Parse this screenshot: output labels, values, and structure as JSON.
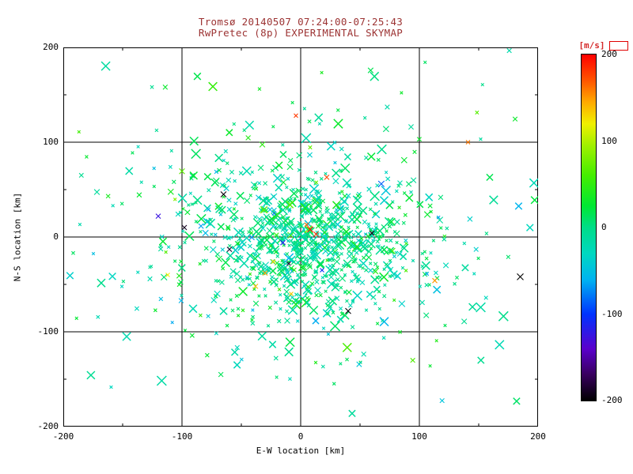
{
  "figure": {
    "background": "#ffffff",
    "title_color": "#9c3333",
    "axis_color": "#000000",
    "unit_label_color": "#d42a2a",
    "legend_box_color": "#e00000"
  },
  "chart_data": {
    "type": "scatter",
    "title": "Tromsø 20140507 07:24:00-07:25:43",
    "subtitle": "RwPretec (8p) EXPERIMENTAL SKYMAP",
    "xlabel": "E-W location [km]",
    "ylabel": "N-S location [km]",
    "xlim": [
      -200,
      200
    ],
    "ylim": [
      -200,
      200
    ],
    "xticks": [
      -200,
      -100,
      0,
      100,
      200
    ],
    "yticks": [
      -200,
      -100,
      0,
      100,
      200
    ],
    "minor_tick_step": 50,
    "grid": true,
    "gridlines_x": [
      -100,
      0,
      100
    ],
    "gridlines_y": [
      -100,
      0,
      100
    ],
    "marker": "x",
    "colorbar": {
      "label": "[m/s]",
      "ticks": [
        200,
        100,
        0,
        -100,
        -200
      ],
      "range": [
        -200,
        200
      ]
    },
    "colormap": [
      {
        "v": 200,
        "c": "#ff0000"
      },
      {
        "v": 170,
        "c": "#ff5500"
      },
      {
        "v": 145,
        "c": "#ffaa00"
      },
      {
        "v": 120,
        "c": "#f0f000"
      },
      {
        "v": 95,
        "c": "#a0f000"
      },
      {
        "v": 60,
        "c": "#44ee00"
      },
      {
        "v": 25,
        "c": "#00e833"
      },
      {
        "v": 0,
        "c": "#00dd88"
      },
      {
        "v": -30,
        "c": "#00d8c0"
      },
      {
        "v": -60,
        "c": "#00b4f0"
      },
      {
        "v": -100,
        "c": "#0033ff"
      },
      {
        "v": -140,
        "c": "#5a00cc"
      },
      {
        "v": -170,
        "c": "#38005e"
      },
      {
        "v": -200,
        "c": "#000000"
      }
    ],
    "seed": 20140507,
    "point_clusters": [
      {
        "name": "core",
        "count": 620,
        "cx": 5,
        "cy": -8,
        "sx": 42,
        "sy": 36,
        "v_mean": -6,
        "v_sd": 20
      },
      {
        "name": "mid",
        "count": 300,
        "cx": 0,
        "cy": -5,
        "sx": 80,
        "sy": 65,
        "v_mean": -4,
        "v_sd": 26
      },
      {
        "name": "halo",
        "count": 150,
        "cx": 0,
        "cy": 5,
        "sx": 135,
        "sy": 105,
        "v_mean": 0,
        "v_sd": 32
      }
    ],
    "outlier_points": [
      {
        "x": 8,
        "y": 8,
        "v": 198,
        "s": 3.5
      },
      {
        "x": 13,
        "y": 3,
        "v": 185,
        "s": 3
      },
      {
        "x": 5,
        "y": 13,
        "v": 165,
        "s": 2.5
      },
      {
        "x": 22,
        "y": 63,
        "v": 175,
        "s": 3
      },
      {
        "x": -4,
        "y": 128,
        "v": 180,
        "s": 2.5
      },
      {
        "x": -30,
        "y": -38,
        "v": 148,
        "s": 3
      },
      {
        "x": -38,
        "y": -52,
        "v": 140,
        "s": 3
      },
      {
        "x": -23,
        "y": -26,
        "v": 128,
        "s": 2.5
      },
      {
        "x": 113,
        "y": -46,
        "v": 150,
        "s": 3
      },
      {
        "x": 141,
        "y": 100,
        "v": 160,
        "s": 2.5
      },
      {
        "x": -112,
        "y": -40,
        "v": 120,
        "s": 2.5
      },
      {
        "x": -8,
        "y": -60,
        "v": 135,
        "s": 2.5
      },
      {
        "x": -65,
        "y": 45,
        "v": -196,
        "s": 3.5
      },
      {
        "x": -98,
        "y": 10,
        "v": -190,
        "s": 3
      },
      {
        "x": -60,
        "y": -13,
        "v": -186,
        "s": 3
      },
      {
        "x": 40,
        "y": -78,
        "v": -198,
        "s": 3.5
      },
      {
        "x": 185,
        "y": -42,
        "v": -200,
        "s": 4
      },
      {
        "x": 60,
        "y": 4,
        "v": -192,
        "s": 3
      },
      {
        "x": -10,
        "y": -28,
        "v": -182,
        "s": 2.5
      },
      {
        "x": -120,
        "y": 22,
        "v": -125,
        "s": 3
      },
      {
        "x": -15,
        "y": -6,
        "v": -112,
        "s": 3
      },
      {
        "x": 18,
        "y": -35,
        "v": -105,
        "s": 2.5
      }
    ]
  }
}
